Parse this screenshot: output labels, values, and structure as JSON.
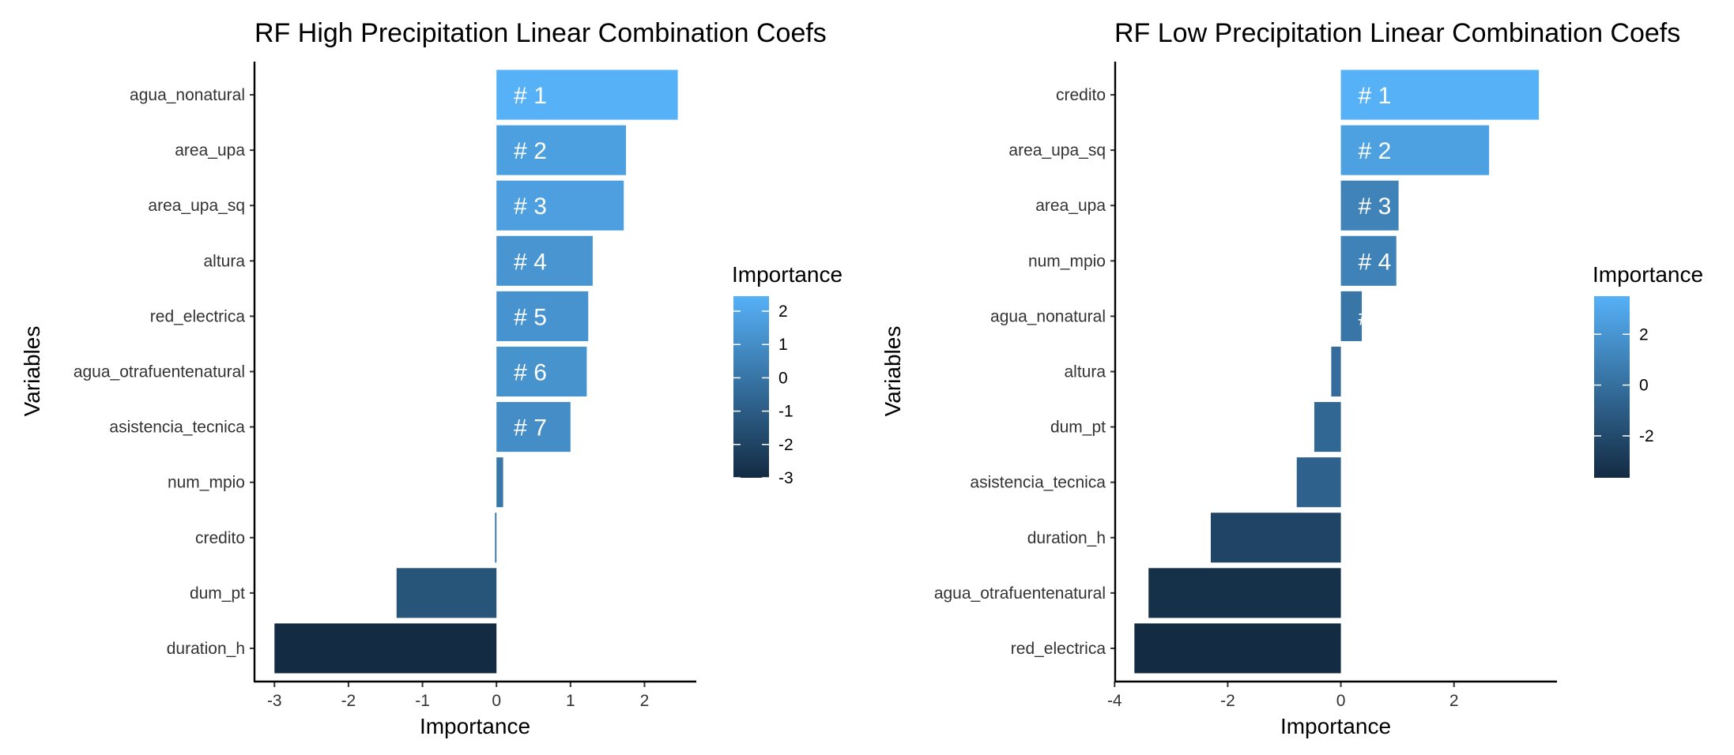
{
  "chart_data": [
    {
      "type": "bar",
      "orientation": "horizontal",
      "title": "RF High Precipitation Linear Combination Coefs",
      "xlabel": "Importance",
      "ylabel": "Variables",
      "categories": [
        "agua_nonatural",
        "area_upa",
        "area_upa_sq",
        "altura",
        "red_electrica",
        "agua_otrafuentenatural",
        "asistencia_tecnica",
        "num_mpio",
        "credito",
        "dum_pt",
        "duration_h"
      ],
      "values": [
        2.45,
        1.75,
        1.72,
        1.3,
        1.24,
        1.22,
        1.0,
        0.09,
        -0.02,
        -1.35,
        -3.0
      ],
      "labels": [
        "# 1",
        "# 2",
        "# 3",
        "# 4",
        "# 5",
        "# 6",
        "# 7",
        "",
        "",
        "",
        ""
      ],
      "xlim": [
        -3.27,
        2.7
      ],
      "xticks": [
        "-3",
        "-2",
        "-1",
        "0",
        "1",
        "2"
      ],
      "legend": {
        "title": "Importance",
        "ticks": [
          "2",
          "1",
          "0",
          "-1",
          "-2",
          "-3"
        ],
        "range": [
          -3.0,
          2.45
        ],
        "placement": "right"
      },
      "grid": false
    },
    {
      "type": "bar",
      "orientation": "horizontal",
      "title": "RF Low Precipitation Linear Combination Coefs",
      "xlabel": "Importance",
      "ylabel": "Variables",
      "categories": [
        "credito",
        "area_upa_sq",
        "area_upa",
        "num_mpio",
        "agua_nonatural",
        "altura",
        "dum_pt",
        "asistencia_tecnica",
        "duration_h",
        "agua_otrafuentenatural",
        "red_electrica"
      ],
      "values": [
        3.5,
        2.62,
        1.02,
        0.98,
        0.37,
        -0.17,
        -0.47,
        -0.78,
        -2.3,
        -3.4,
        -3.65
      ],
      "labels": [
        "# 1",
        "# 2",
        "# 3",
        "# 4",
        "#",
        "",
        "",
        "",
        "",
        "",
        ""
      ],
      "xlim": [
        -3.99,
        3.82
      ],
      "xticks": [
        "-4",
        "-2",
        "0",
        "2"
      ],
      "legend": {
        "title": "Importance",
        "ticks": [
          "2",
          "0",
          "-2"
        ],
        "range": [
          -3.65,
          3.5
        ],
        "placement": "right"
      },
      "grid": false
    }
  ],
  "colors": {
    "low": "#132B43",
    "high": "#56B1F7",
    "axis": "#000000",
    "bar_label": "#ffffff"
  }
}
